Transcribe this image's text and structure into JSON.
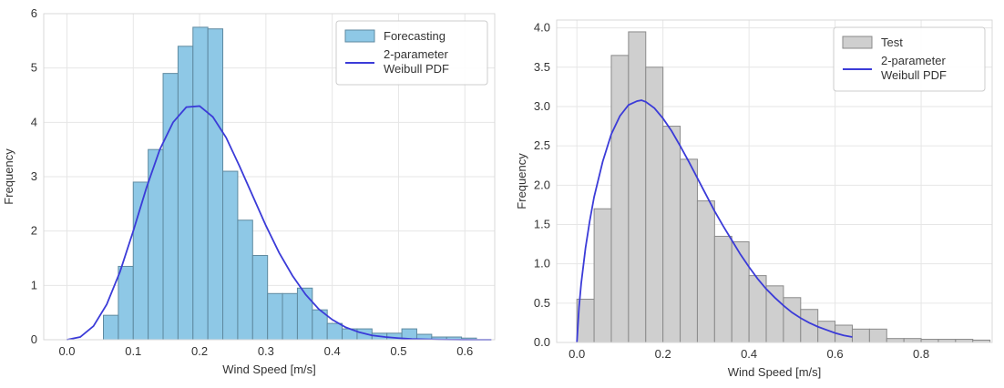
{
  "chart_data": [
    {
      "type": "bar",
      "xlabel": "Wind Speed [m/s]",
      "ylabel": "Frequency",
      "xlim": [
        -0.035,
        0.645
      ],
      "ylim": [
        0,
        6
      ],
      "xticks": [
        "0.0",
        "0.1",
        "0.2",
        "0.3",
        "0.4",
        "0.5",
        "0.6"
      ],
      "yticks": [
        "0",
        "1",
        "2",
        "3",
        "4",
        "5",
        "6"
      ],
      "grid": true,
      "legend_position": "top-right",
      "histogram": {
        "name": "Forecasting",
        "color": "#8ec8e6",
        "edge_color": "#5f8aa0",
        "bin_width": 0.0225,
        "bin_starts": [
          0.055,
          0.0775,
          0.1,
          0.1225,
          0.145,
          0.1675,
          0.19,
          0.2125,
          0.235,
          0.2575,
          0.28,
          0.3025,
          0.325,
          0.3475,
          0.37,
          0.3925,
          0.415,
          0.4375,
          0.46,
          0.4825,
          0.505,
          0.5275,
          0.55,
          0.5725,
          0.595
        ],
        "values": [
          0.45,
          1.35,
          2.9,
          3.5,
          4.9,
          5.4,
          5.75,
          5.72,
          3.1,
          2.2,
          1.55,
          0.85,
          0.85,
          0.95,
          0.55,
          0.3,
          0.2,
          0.2,
          0.12,
          0.12,
          0.2,
          0.1,
          0.05,
          0.05,
          0.03
        ]
      },
      "curve": {
        "name": "2-parameter\nWeibull PDF",
        "color": "#3b3bd8",
        "x": [
          0.0,
          0.02,
          0.04,
          0.06,
          0.08,
          0.1,
          0.12,
          0.14,
          0.16,
          0.18,
          0.2,
          0.22,
          0.24,
          0.26,
          0.28,
          0.3,
          0.32,
          0.34,
          0.36,
          0.38,
          0.4,
          0.42,
          0.44,
          0.46,
          0.48,
          0.5,
          0.52,
          0.54,
          0.56,
          0.58,
          0.6,
          0.62,
          0.64
        ],
        "y": [
          0.0,
          0.05,
          0.25,
          0.65,
          1.25,
          2.0,
          2.8,
          3.5,
          4.0,
          4.28,
          4.3,
          4.1,
          3.72,
          3.2,
          2.65,
          2.1,
          1.6,
          1.18,
          0.83,
          0.56,
          0.37,
          0.23,
          0.14,
          0.08,
          0.05,
          0.03,
          0.015,
          0.008,
          0.004,
          0.002,
          0.001,
          0.0,
          0.0
        ]
      }
    },
    {
      "type": "bar",
      "xlabel": "Wind Speed [m/s]",
      "ylabel": "Frequency",
      "xlim": [
        -0.047,
        0.965
      ],
      "ylim": [
        0,
        4.1
      ],
      "xticks": [
        "0.0",
        "0.2",
        "0.4",
        "0.6",
        "0.8"
      ],
      "yticks": [
        "0.0",
        "0.5",
        "1.0",
        "1.5",
        "2.0",
        "2.5",
        "3.0",
        "3.5",
        "4.0"
      ],
      "grid": true,
      "legend_position": "top-right",
      "histogram": {
        "name": "Test",
        "color": "#cfcfcf",
        "edge_color": "#8a8a8a",
        "bin_width": 0.04,
        "bin_starts": [
          0.0,
          0.04,
          0.08,
          0.12,
          0.16,
          0.2,
          0.24,
          0.28,
          0.32,
          0.36,
          0.4,
          0.44,
          0.48,
          0.52,
          0.56,
          0.6,
          0.64,
          0.68,
          0.72,
          0.76,
          0.8,
          0.84,
          0.88,
          0.92
        ],
        "values": [
          0.55,
          1.7,
          3.65,
          3.95,
          3.5,
          2.75,
          2.33,
          1.8,
          1.35,
          1.28,
          0.85,
          0.72,
          0.57,
          0.42,
          0.27,
          0.22,
          0.17,
          0.17,
          0.05,
          0.05,
          0.04,
          0.04,
          0.04,
          0.03
        ]
      },
      "curve": {
        "name": "2-parameter\nWeibull PDF",
        "color": "#3b3bd8",
        "x": [
          0.0,
          0.005,
          0.01,
          0.02,
          0.03,
          0.04,
          0.06,
          0.08,
          0.1,
          0.12,
          0.14,
          0.15,
          0.16,
          0.18,
          0.2,
          0.22,
          0.24,
          0.26,
          0.28,
          0.3,
          0.32,
          0.34,
          0.36,
          0.38,
          0.4,
          0.42,
          0.44,
          0.46,
          0.48,
          0.5,
          0.52,
          0.54,
          0.56,
          0.58,
          0.6,
          0.62,
          0.64
        ],
        "y": [
          0.0,
          0.45,
          0.75,
          1.2,
          1.55,
          1.85,
          2.3,
          2.65,
          2.88,
          3.02,
          3.07,
          3.08,
          3.06,
          2.98,
          2.85,
          2.69,
          2.5,
          2.3,
          2.09,
          1.88,
          1.67,
          1.48,
          1.3,
          1.12,
          0.96,
          0.81,
          0.68,
          0.57,
          0.47,
          0.38,
          0.31,
          0.25,
          0.2,
          0.16,
          0.12,
          0.09,
          0.07
        ]
      }
    }
  ]
}
